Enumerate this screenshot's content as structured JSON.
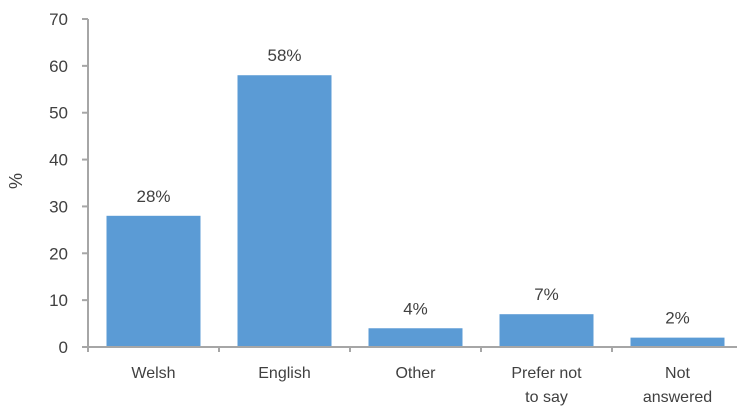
{
  "chart_data": {
    "type": "bar",
    "categories": [
      [
        "Welsh"
      ],
      [
        "English"
      ],
      [
        "Other"
      ],
      [
        "Prefer not",
        "to say"
      ],
      [
        "Not",
        "answered"
      ]
    ],
    "values": [
      28,
      58,
      4,
      7,
      2
    ],
    "data_labels": [
      "28%",
      "58%",
      "4%",
      "7%",
      "2%"
    ],
    "title": "",
    "xlabel": "",
    "ylabel": "%",
    "ylim": [
      0,
      70
    ],
    "yticks": [
      0,
      10,
      20,
      30,
      40,
      50,
      60,
      70
    ],
    "grid": false,
    "legend": "none",
    "colors": {
      "bar": "#5b9bd5",
      "axis": "#a6a6a6",
      "text": "#404040"
    }
  }
}
